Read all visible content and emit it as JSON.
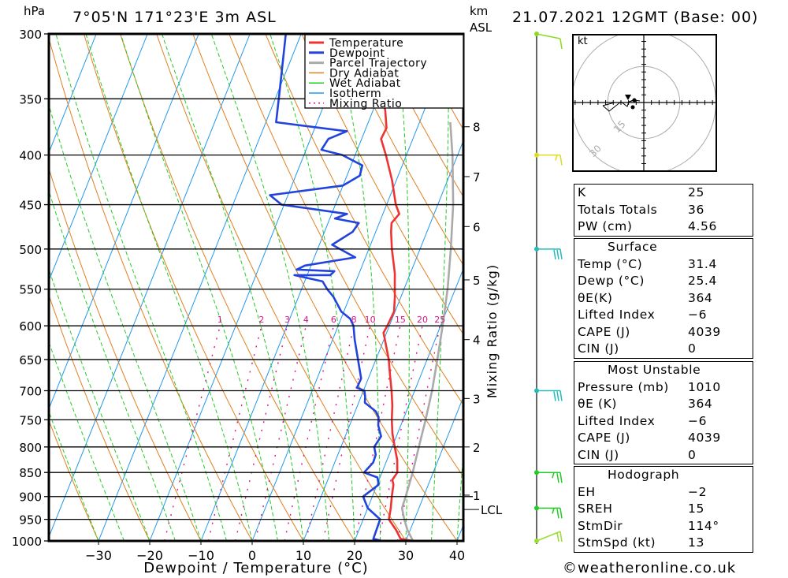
{
  "header": {
    "pressure_unit": "hPa",
    "location": "7°05'N  171°23'E  3m  ASL",
    "km_label": "km",
    "asl_label": "ASL",
    "datetime": "21.07.2021  12GMT  (Base: 00)"
  },
  "legend": [
    {
      "label": "Temperature",
      "color": "#ee3333",
      "style": "solid"
    },
    {
      "label": "Dewpoint",
      "color": "#2244dd",
      "style": "solid"
    },
    {
      "label": "Parcel Trajectory",
      "color": "#aaaaaa",
      "style": "solid"
    },
    {
      "label": "Dry Adiabat",
      "color": "#e08020",
      "style": "solid"
    },
    {
      "label": "Wet Adiabat",
      "color": "#22cc22",
      "style": "solid"
    },
    {
      "label": "Isotherm",
      "color": "#2299ee",
      "style": "solid"
    },
    {
      "label": "Mixing Ratio",
      "color": "#dd1188",
      "style": "dotted"
    }
  ],
  "chart_data": {
    "type": "line",
    "title": "7°05'N 171°23'E 3m ASL",
    "xlabel": "Dewpoint / Temperature (°C)",
    "ylabel": "hPa",
    "y2label": "Mixing Ratio (g/kg)",
    "xlim": [
      -40,
      40
    ],
    "ylim": [
      1000,
      300
    ],
    "x_ticks": [
      -30,
      -20,
      -10,
      0,
      10,
      20,
      30,
      40
    ],
    "pressure_ticks": [
      300,
      350,
      400,
      450,
      500,
      550,
      600,
      650,
      700,
      750,
      800,
      850,
      900,
      950,
      1000
    ],
    "km_ticks": [
      {
        "km": "8",
        "p": 374
      },
      {
        "km": "7",
        "p": 421
      },
      {
        "km": "6",
        "p": 474
      },
      {
        "km": "5",
        "p": 538
      },
      {
        "km": "4",
        "p": 620
      },
      {
        "km": "3",
        "p": 713
      },
      {
        "km": "2",
        "p": 800
      },
      {
        "km": "1",
        "p": 897
      }
    ],
    "lcl": {
      "label": "LCL",
      "p": 928
    },
    "mixing_ratio_labels": [
      "1",
      "2",
      "3",
      "4",
      "6",
      "8",
      "10",
      "15",
      "20",
      "25"
    ],
    "mixing_ratio_values": [
      1,
      2,
      3,
      4,
      6,
      8,
      10,
      15,
      20,
      25
    ],
    "series": [
      {
        "name": "Temperature",
        "points": [
          [
            1000,
            31.4
          ],
          [
            995,
            28.8
          ],
          [
            975,
            27.3
          ],
          [
            950,
            25.0
          ],
          [
            925,
            24.5
          ],
          [
            900,
            23.8
          ],
          [
            875,
            23.2
          ],
          [
            865,
            22.6
          ],
          [
            850,
            23.0
          ],
          [
            825,
            22.0
          ],
          [
            800,
            20.5
          ],
          [
            775,
            19.0
          ],
          [
            750,
            17.8
          ],
          [
            725,
            16.8
          ],
          [
            700,
            15.5
          ],
          [
            675,
            14.0
          ],
          [
            650,
            12.5
          ],
          [
            625,
            10.6
          ],
          [
            610,
            9.4
          ],
          [
            600,
            9.6
          ],
          [
            580,
            9.8
          ],
          [
            560,
            8.8
          ],
          [
            540,
            7.6
          ],
          [
            530,
            7.0
          ],
          [
            500,
            4.5
          ],
          [
            480,
            3.0
          ],
          [
            470,
            2.4
          ],
          [
            460,
            3.2
          ],
          [
            450,
            1.8
          ],
          [
            425,
            -0.8
          ],
          [
            400,
            -4.0
          ],
          [
            385,
            -6.2
          ],
          [
            375,
            -6.0
          ],
          [
            360,
            -7.6
          ],
          [
            345,
            -9.6
          ],
          [
            320,
            -14.0
          ],
          [
            300,
            -17.8
          ]
        ]
      },
      {
        "name": "Dewpoint",
        "points": [
          [
            1000,
            25.4
          ],
          [
            995,
            23.5
          ],
          [
            950,
            23.3
          ],
          [
            925,
            20.0
          ],
          [
            900,
            18.2
          ],
          [
            875,
            20.3
          ],
          [
            860,
            19.5
          ],
          [
            850,
            16.5
          ],
          [
            830,
            17.5
          ],
          [
            815,
            17.4
          ],
          [
            800,
            16.5
          ],
          [
            780,
            17.0
          ],
          [
            760,
            15.6
          ],
          [
            745,
            15.0
          ],
          [
            735,
            14.0
          ],
          [
            720,
            11.2
          ],
          [
            710,
            10.8
          ],
          [
            700,
            10.2
          ],
          [
            695,
            8.5
          ],
          [
            680,
            8.6
          ],
          [
            650,
            6.5
          ],
          [
            620,
            4.3
          ],
          [
            600,
            3.0
          ],
          [
            590,
            1.8
          ],
          [
            580,
            -0.5
          ],
          [
            560,
            -3.2
          ],
          [
            550,
            -5.0
          ],
          [
            540,
            -6.5
          ],
          [
            532,
            -12.5
          ],
          [
            532,
            -5.5
          ],
          [
            527,
            -5.0
          ],
          [
            525,
            -12.5
          ],
          [
            520,
            -11.2
          ],
          [
            510,
            -2.0
          ],
          [
            495,
            -7.5
          ],
          [
            480,
            -4.5
          ],
          [
            470,
            -4.0
          ],
          [
            465,
            -9.0
          ],
          [
            460,
            -7.0
          ],
          [
            450,
            -20.5
          ],
          [
            440,
            -23.5
          ],
          [
            430,
            -10.0
          ],
          [
            420,
            -7.5
          ],
          [
            410,
            -7.8
          ],
          [
            400,
            -12.5
          ],
          [
            395,
            -17.0
          ],
          [
            385,
            -16.5
          ],
          [
            378,
            -13.5
          ],
          [
            370,
            -28.0
          ],
          [
            340,
            -30.0
          ],
          [
            300,
            -33.0
          ]
        ]
      },
      {
        "name": "Parcel Trajectory",
        "points": [
          [
            1000,
            31.4
          ],
          [
            975,
            29.5
          ],
          [
            950,
            28.0
          ],
          [
            925,
            26.7
          ],
          [
            900,
            26.5
          ],
          [
            850,
            26.0
          ],
          [
            800,
            25.2
          ],
          [
            750,
            24.4
          ],
          [
            700,
            23.4
          ],
          [
            650,
            22.0
          ],
          [
            600,
            20.4
          ],
          [
            550,
            18.5
          ],
          [
            500,
            16.0
          ],
          [
            450,
            13.0
          ],
          [
            400,
            9.0
          ],
          [
            370,
            6.0
          ]
        ]
      }
    ]
  },
  "wind_barbs": [
    {
      "p": 300,
      "color": "#88dd22",
      "speed_kt": 10
    },
    {
      "p": 400,
      "color": "#dddd22",
      "speed_kt": 5
    },
    {
      "p": 500,
      "color": "#22bbbb",
      "speed_kt": 30
    },
    {
      "p": 700,
      "color": "#22bbbb",
      "speed_kt": 30
    },
    {
      "p": 850,
      "color": "#22cc22",
      "speed_kt": 15
    },
    {
      "p": 925,
      "color": "#22cc22",
      "speed_kt": 15
    },
    {
      "p": 1000,
      "color": "#99dd33",
      "speed_kt": 20
    }
  ],
  "hodograph": {
    "unit_label": "kt",
    "ring_labels": [
      "15",
      "30",
      "45"
    ],
    "ring_values": [
      15,
      30,
      45
    ]
  },
  "indices": {
    "rows": [
      {
        "key": "K",
        "value": "25"
      },
      {
        "key": "Totals Totals",
        "value": "36"
      },
      {
        "key": "PW (cm)",
        "value": "4.56"
      }
    ]
  },
  "surface": {
    "title": "Surface",
    "rows": [
      {
        "key": "Temp (°C)",
        "value": "31.4"
      },
      {
        "key": "Dewp (°C)",
        "value": "25.4"
      },
      {
        "key": "θE(K)",
        "value": "364"
      },
      {
        "key": "Lifted Index",
        "value": "−6"
      },
      {
        "key": "CAPE (J)",
        "value": "4039"
      },
      {
        "key": "CIN (J)",
        "value": "0"
      }
    ]
  },
  "most_unstable": {
    "title": "Most Unstable",
    "rows": [
      {
        "key": "Pressure (mb)",
        "value": "1010"
      },
      {
        "key": "θE (K)",
        "value": "364"
      },
      {
        "key": "Lifted Index",
        "value": "−6"
      },
      {
        "key": "CAPE (J)",
        "value": "4039"
      },
      {
        "key": "CIN (J)",
        "value": "0"
      }
    ]
  },
  "hodograph_params": {
    "title": "Hodograph",
    "rows": [
      {
        "key": "EH",
        "value": "−2"
      },
      {
        "key": "SREH",
        "value": "15"
      },
      {
        "key": "StmDir",
        "value": "114°"
      },
      {
        "key": "StmSpd (kt)",
        "value": "13"
      }
    ]
  },
  "footer": {
    "copyright": "©weatheronline.co.uk"
  }
}
